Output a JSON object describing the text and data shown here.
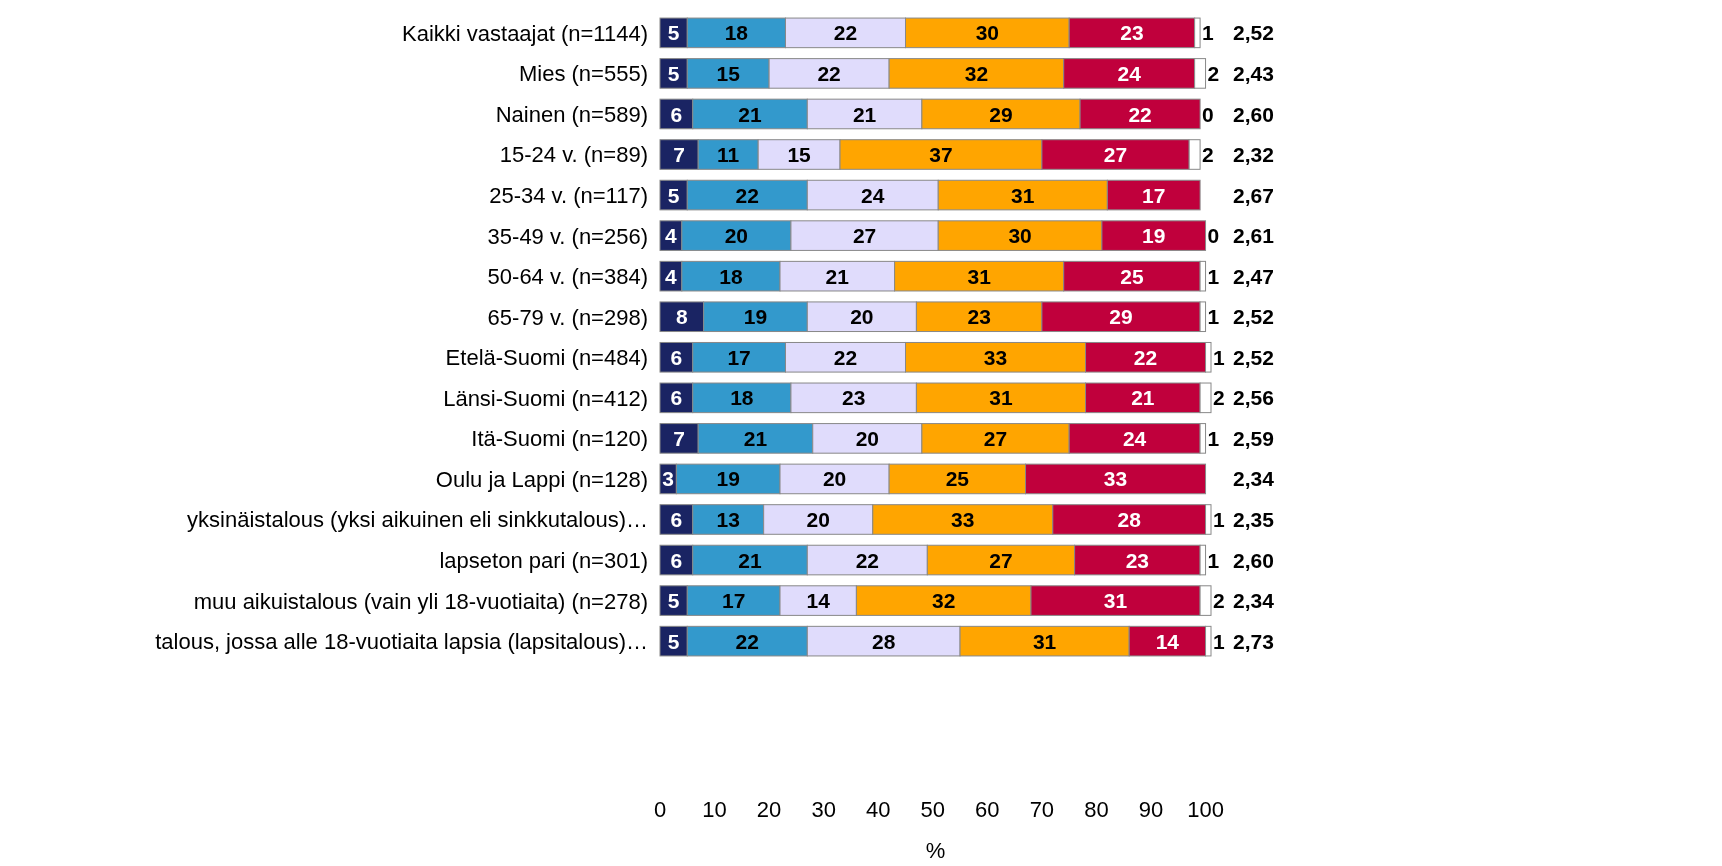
{
  "chart_data": {
    "type": "bar",
    "orientation": "horizontal",
    "stacked": true,
    "data_labels": true,
    "grid": false,
    "xlabel": "%",
    "xlim": [
      0,
      101
    ],
    "xticks": [
      0,
      10,
      20,
      30,
      40,
      50,
      60,
      70,
      80,
      90,
      100
    ],
    "categories": [
      "Kaikki vastaajat (n=1144)",
      "Mies (n=555)",
      "Nainen (n=589)",
      "15-24 v. (n=89)",
      "25-34 v. (n=117)",
      "35-49 v. (n=256)",
      "50-64 v. (n=384)",
      "65-79 v. (n=298)",
      "Etelä-Suomi (n=484)",
      "Länsi-Suomi (n=412)",
      "Itä-Suomi (n=120)",
      "Oulu ja Lappi (n=128)",
      "yksinäistalous (yksi aikuinen eli sinkkutalous)…",
      "lapseton pari (n=301)",
      "muu aikuistalous (vain yli 18-vuotiaita) (n=278)",
      "talous, jossa alle 18-vuotiaita lapsia (lapsitalous)…"
    ],
    "series": [
      {
        "color": "#1a2463",
        "values": [
          5,
          5,
          6,
          7,
          5,
          4,
          4,
          8,
          6,
          6,
          7,
          3,
          6,
          6,
          5,
          5
        ]
      },
      {
        "color": "#3399cc",
        "values": [
          18,
          15,
          21,
          11,
          22,
          20,
          18,
          19,
          17,
          18,
          21,
          19,
          13,
          21,
          17,
          22
        ]
      },
      {
        "color": "#e0dcfc",
        "values": [
          22,
          22,
          21,
          15,
          24,
          27,
          21,
          20,
          22,
          23,
          20,
          20,
          20,
          22,
          14,
          28
        ]
      },
      {
        "color": "#ffa500",
        "values": [
          30,
          32,
          29,
          37,
          31,
          30,
          31,
          23,
          33,
          31,
          27,
          25,
          33,
          27,
          32,
          31
        ]
      },
      {
        "color": "#c0003c",
        "values": [
          23,
          24,
          22,
          27,
          17,
          19,
          25,
          29,
          22,
          21,
          24,
          33,
          28,
          23,
          31,
          14
        ]
      },
      {
        "color": "#ffffff",
        "values": [
          1,
          2,
          0,
          2,
          null,
          0,
          1,
          1,
          1,
          2,
          1,
          null,
          1,
          1,
          2,
          1
        ]
      }
    ],
    "annotations": [
      "2,52",
      "2,43",
      "2,60",
      "2,32",
      "2,67",
      "2,61",
      "2,47",
      "2,52",
      "2,52",
      "2,56",
      "2,59",
      "2,34",
      "2,35",
      "2,60",
      "2,34",
      "2,73"
    ]
  }
}
